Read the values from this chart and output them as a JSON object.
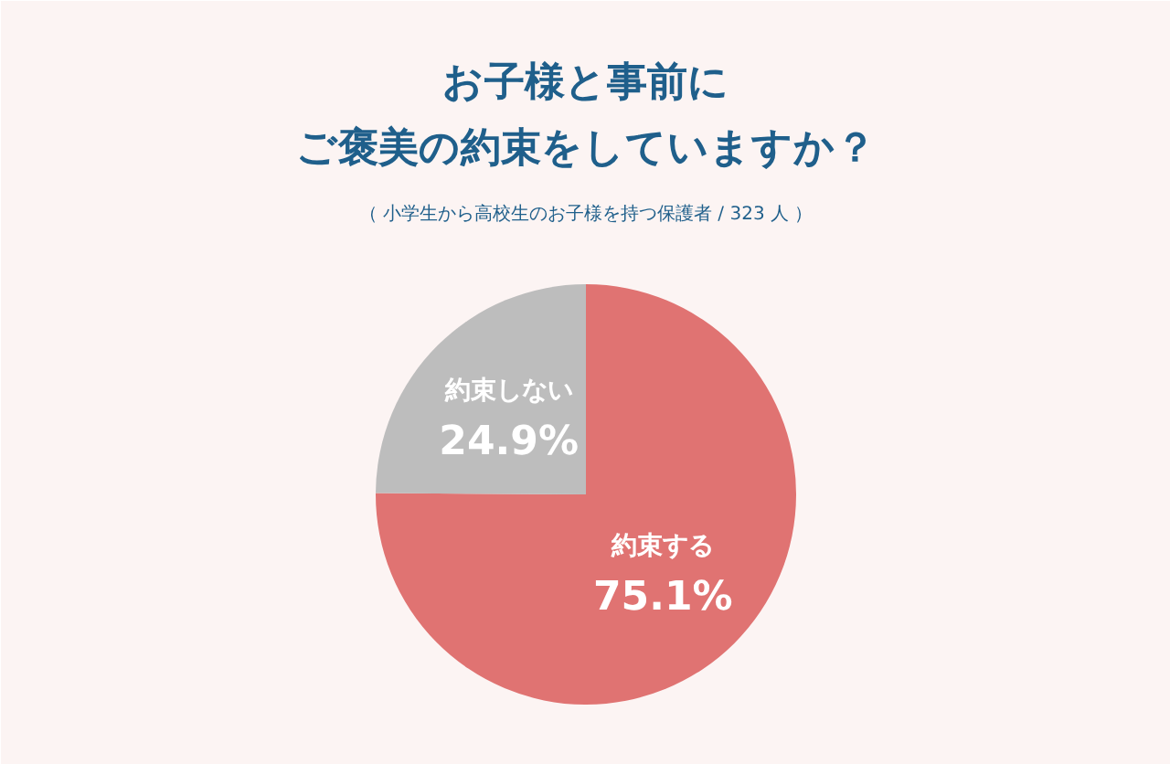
{
  "chart_data": {
    "type": "pie",
    "title": "お子様と事前に",
    "subtitle": "ご褒美の約束をしていますか？",
    "annotations": [
      "（ 小学生から高校生のお子様を持つ保護者 / 323 人 ）"
    ],
    "categories": [
      "約束する",
      "約束しない"
    ],
    "values": [
      75.1,
      24.9
    ],
    "colors": [
      "#e07372",
      "#bdbdbd"
    ],
    "value_labels": [
      "75.1%",
      "24.9%"
    ]
  }
}
